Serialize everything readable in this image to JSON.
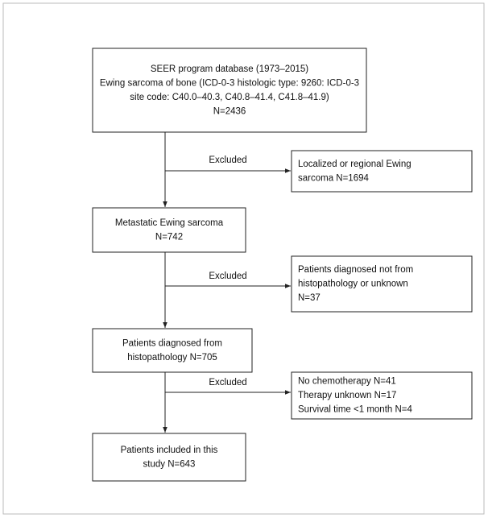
{
  "nodes": [
    {
      "lines": [
        "SEER program database (1973–2015)",
        "Ewing sarcoma of bone (ICD-0-3 histologic type: 9260: ICD-0-3",
        "site code: C40.0–40.3, C40.8–41.4, C41.8–41.9)",
        "N=2436"
      ]
    },
    {
      "lines": [
        "Localized or regional Ewing",
        "sarcoma N=1694"
      ]
    },
    {
      "lines": [
        "Metastatic Ewing sarcoma",
        "N=742"
      ]
    },
    {
      "lines": [
        "Patients diagnosed not from",
        "histopathology or unknown",
        "N=37"
      ]
    },
    {
      "lines": [
        "Patients diagnosed from",
        "histopathology N=705"
      ]
    },
    {
      "lines": [
        "No chemotherapy N=41",
        "Therapy unknown N=17",
        "Survival time <1 month N=4"
      ]
    },
    {
      "lines": [
        "Patients included in this",
        "study N=643"
      ]
    }
  ],
  "edges": [
    {
      "label": "Excluded"
    },
    {
      "label": "Excluded"
    },
    {
      "label": "Excluded"
    }
  ]
}
